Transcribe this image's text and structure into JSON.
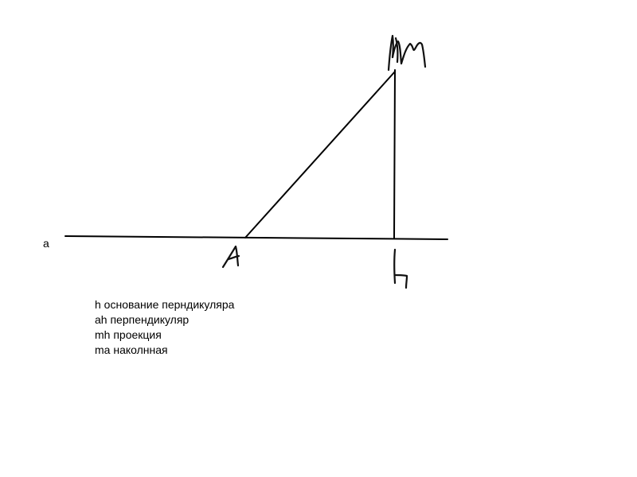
{
  "diagram": {
    "line_label": "a",
    "notes": [
      "h основание перндикуляра",
      "ah перпендикуляр",
      "mh проекция",
      "ma наколнная"
    ],
    "handwritten_points": [
      "M",
      "A",
      "H"
    ],
    "stroke_color": "#000000"
  }
}
